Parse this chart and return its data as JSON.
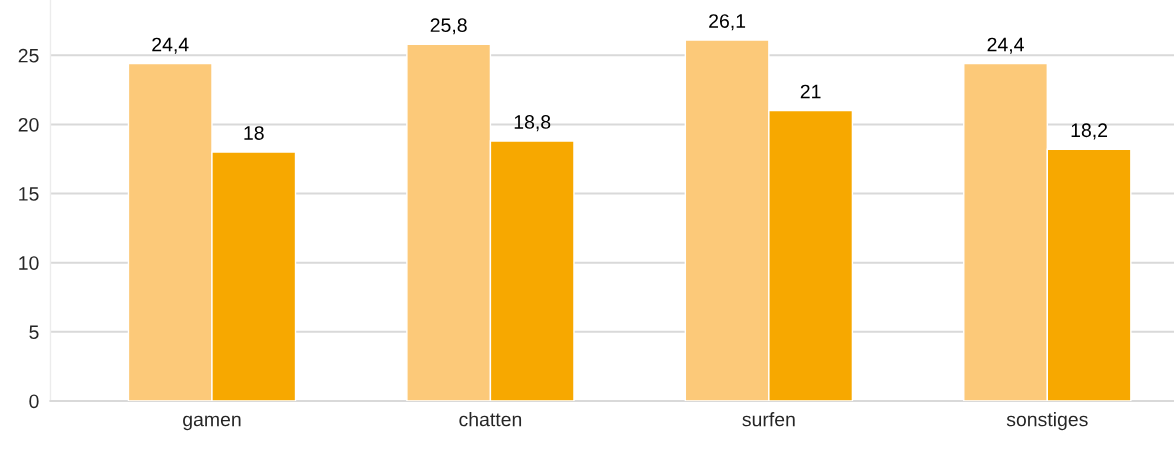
{
  "chart_data": {
    "type": "bar",
    "categories": [
      "gamen",
      "chatten",
      "surfen",
      "sonstiges"
    ],
    "series": [
      {
        "color": "#fcc979",
        "values": [
          24.4,
          25.8,
          26.1,
          24.4
        ],
        "value_labels": [
          "24,4",
          "25,8",
          "26,1",
          "24,4"
        ]
      },
      {
        "color": "#f7a800",
        "values": [
          18,
          18.8,
          21,
          18.2
        ],
        "value_labels": [
          "18",
          "18,8",
          "21",
          "18,2"
        ]
      }
    ],
    "ylim": [
      0,
      29
    ],
    "yticks": [
      0,
      5,
      10,
      15,
      20,
      25
    ],
    "grid": "y"
  }
}
